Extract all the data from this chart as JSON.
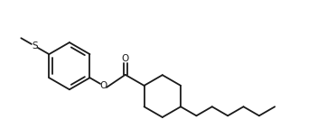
{
  "bg_color": "#ffffff",
  "line_color": "#1a1a1a",
  "line_width": 1.3,
  "text_color": "#1a1a1a",
  "font_size": 7.5,
  "xlim": [
    0,
    10.5
  ],
  "ylim": [
    0,
    4.2
  ]
}
